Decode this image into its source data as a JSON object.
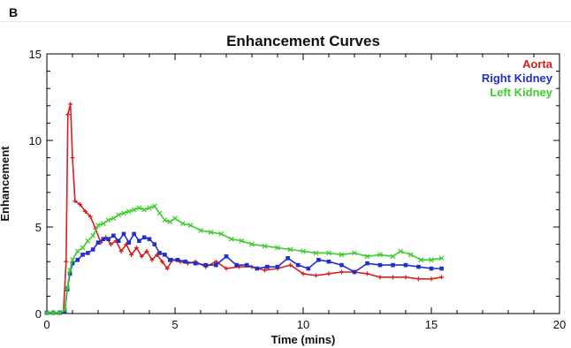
{
  "panel_label": "B",
  "chart_data": {
    "type": "line",
    "title": "Enhancement Curves",
    "xlabel": "Time (mins)",
    "ylabel": "Enhancement",
    "xlim": [
      0,
      20
    ],
    "ylim": [
      0,
      15
    ],
    "xticks": [
      0,
      5,
      10,
      15,
      20
    ],
    "yticks": [
      0,
      5,
      10,
      15
    ],
    "grid": false,
    "legend_position": "top-right",
    "series": [
      {
        "name": "Aorta",
        "color": "#d62020",
        "points": [
          [
            0.0,
            0.05
          ],
          [
            0.25,
            0.05
          ],
          [
            0.5,
            0.05
          ],
          [
            0.65,
            0.1
          ],
          [
            0.75,
            3.0
          ],
          [
            0.82,
            11.5
          ],
          [
            0.92,
            12.1
          ],
          [
            1.0,
            9.0
          ],
          [
            1.1,
            6.5
          ],
          [
            1.3,
            6.3
          ],
          [
            1.5,
            5.9
          ],
          [
            1.7,
            5.6
          ],
          [
            1.9,
            4.9
          ],
          [
            2.1,
            4.1
          ],
          [
            2.3,
            4.4
          ],
          [
            2.5,
            4.0
          ],
          [
            2.7,
            4.2
          ],
          [
            2.9,
            3.6
          ],
          [
            3.1,
            4.0
          ],
          [
            3.3,
            3.4
          ],
          [
            3.5,
            3.8
          ],
          [
            3.7,
            3.3
          ],
          [
            3.9,
            3.6
          ],
          [
            4.1,
            3.1
          ],
          [
            4.3,
            3.4
          ],
          [
            4.5,
            3.0
          ],
          [
            4.7,
            2.6
          ],
          [
            4.9,
            3.1
          ],
          [
            5.2,
            3.0
          ],
          [
            5.5,
            2.9
          ],
          [
            5.8,
            3.0
          ],
          [
            6.2,
            2.7
          ],
          [
            6.6,
            3.0
          ],
          [
            7.0,
            2.6
          ],
          [
            7.5,
            2.7
          ],
          [
            8.0,
            2.7
          ],
          [
            8.5,
            2.5
          ],
          [
            9.0,
            2.6
          ],
          [
            9.5,
            2.8
          ],
          [
            10.0,
            2.3
          ],
          [
            10.5,
            2.2
          ],
          [
            11.0,
            2.3
          ],
          [
            11.5,
            2.4
          ],
          [
            12.0,
            2.4
          ],
          [
            12.5,
            2.3
          ],
          [
            13.0,
            2.1
          ],
          [
            13.5,
            2.1
          ],
          [
            14.0,
            2.1
          ],
          [
            14.5,
            2.0
          ],
          [
            15.0,
            2.0
          ],
          [
            15.4,
            2.1
          ]
        ]
      },
      {
        "name": "Right Kidney",
        "color": "#2030c8",
        "points": [
          [
            0.0,
            0.05
          ],
          [
            0.25,
            0.05
          ],
          [
            0.5,
            0.05
          ],
          [
            0.7,
            0.1
          ],
          [
            0.8,
            1.4
          ],
          [
            0.9,
            2.3
          ],
          [
            1.0,
            2.9
          ],
          [
            1.2,
            3.1
          ],
          [
            1.4,
            3.4
          ],
          [
            1.6,
            3.5
          ],
          [
            1.8,
            3.7
          ],
          [
            2.0,
            4.1
          ],
          [
            2.2,
            4.3
          ],
          [
            2.4,
            4.3
          ],
          [
            2.6,
            4.5
          ],
          [
            2.8,
            4.2
          ],
          [
            3.0,
            4.6
          ],
          [
            3.2,
            4.1
          ],
          [
            3.4,
            4.6
          ],
          [
            3.6,
            4.2
          ],
          [
            3.8,
            4.4
          ],
          [
            4.0,
            4.3
          ],
          [
            4.2,
            4.0
          ],
          [
            4.4,
            3.5
          ],
          [
            4.6,
            3.4
          ],
          [
            4.8,
            3.1
          ],
          [
            5.1,
            3.1
          ],
          [
            5.4,
            3.0
          ],
          [
            5.8,
            2.9
          ],
          [
            6.2,
            2.8
          ],
          [
            6.6,
            2.8
          ],
          [
            7.0,
            3.3
          ],
          [
            7.4,
            2.8
          ],
          [
            7.8,
            2.8
          ],
          [
            8.2,
            2.6
          ],
          [
            8.6,
            2.7
          ],
          [
            9.0,
            2.7
          ],
          [
            9.4,
            3.2
          ],
          [
            9.8,
            2.8
          ],
          [
            10.2,
            2.6
          ],
          [
            10.6,
            3.1
          ],
          [
            11.0,
            3.0
          ],
          [
            11.5,
            2.8
          ],
          [
            12.0,
            2.4
          ],
          [
            12.5,
            2.9
          ],
          [
            13.0,
            2.8
          ],
          [
            13.5,
            2.8
          ],
          [
            14.0,
            2.8
          ],
          [
            14.5,
            2.7
          ],
          [
            15.0,
            2.6
          ],
          [
            15.4,
            2.6
          ]
        ]
      },
      {
        "name": "Left Kidney",
        "color": "#3ecc2e",
        "points": [
          [
            0.0,
            0.05
          ],
          [
            0.25,
            0.05
          ],
          [
            0.5,
            0.05
          ],
          [
            0.7,
            0.2
          ],
          [
            0.8,
            1.5
          ],
          [
            0.9,
            2.5
          ],
          [
            1.0,
            3.1
          ],
          [
            1.2,
            3.6
          ],
          [
            1.4,
            3.8
          ],
          [
            1.6,
            4.2
          ],
          [
            1.8,
            4.5
          ],
          [
            2.0,
            5.1
          ],
          [
            2.2,
            5.2
          ],
          [
            2.4,
            5.4
          ],
          [
            2.6,
            5.5
          ],
          [
            2.8,
            5.7
          ],
          [
            3.0,
            5.8
          ],
          [
            3.2,
            5.9
          ],
          [
            3.4,
            6.0
          ],
          [
            3.6,
            6.1
          ],
          [
            3.8,
            6.0
          ],
          [
            4.0,
            6.1
          ],
          [
            4.2,
            6.2
          ],
          [
            4.4,
            5.8
          ],
          [
            4.6,
            5.4
          ],
          [
            4.8,
            5.3
          ],
          [
            5.0,
            5.5
          ],
          [
            5.3,
            5.2
          ],
          [
            5.6,
            5.1
          ],
          [
            6.0,
            4.8
          ],
          [
            6.4,
            4.7
          ],
          [
            6.8,
            4.6
          ],
          [
            7.2,
            4.3
          ],
          [
            7.6,
            4.2
          ],
          [
            8.0,
            4.0
          ],
          [
            8.5,
            3.9
          ],
          [
            9.0,
            3.8
          ],
          [
            9.5,
            3.7
          ],
          [
            10.0,
            3.6
          ],
          [
            10.5,
            3.5
          ],
          [
            11.0,
            3.5
          ],
          [
            11.5,
            3.4
          ],
          [
            12.0,
            3.5
          ],
          [
            12.5,
            3.3
          ],
          [
            13.0,
            3.4
          ],
          [
            13.5,
            3.3
          ],
          [
            13.8,
            3.6
          ],
          [
            14.2,
            3.4
          ],
          [
            14.6,
            3.1
          ],
          [
            15.0,
            3.1
          ],
          [
            15.4,
            3.2
          ]
        ]
      }
    ]
  }
}
